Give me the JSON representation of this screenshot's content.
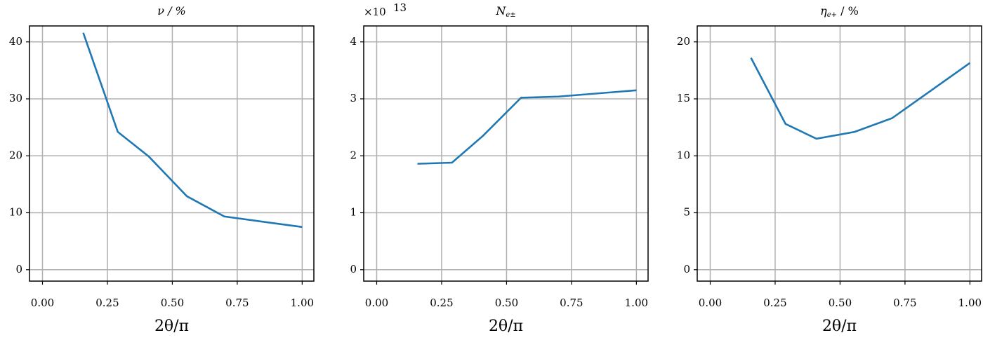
{
  "chart_data": [
    {
      "type": "line",
      "title": "ν / %",
      "xlabel": "2θ/π",
      "x": [
        0.157,
        0.29,
        0.409,
        0.556,
        0.7,
        1.0
      ],
      "series": [
        {
          "color": "#1f77b4",
          "values": [
            41.6,
            24.2,
            19.9,
            12.9,
            9.35,
            7.5
          ]
        }
      ],
      "xlim": [
        -0.05,
        1.045
      ],
      "ylim": [
        -2,
        42.8
      ],
      "xticks": [
        {
          "value": 0,
          "label": "0.00"
        },
        {
          "value": 0.25,
          "label": "0.25"
        },
        {
          "value": 0.5,
          "label": "0.50"
        },
        {
          "value": 0.75,
          "label": "0.75"
        },
        {
          "value": 1,
          "label": "1.00"
        }
      ],
      "yticks": [
        0,
        10,
        20,
        30,
        40
      ],
      "grid": true
    },
    {
      "type": "line",
      "title_main": "N",
      "title_sub": "e±",
      "xlabel": "2θ/π",
      "offset_base": "×10",
      "offset_exponent": "13",
      "x": [
        0.157,
        0.29,
        0.409,
        0.556,
        0.7,
        1.0
      ],
      "series": [
        {
          "color": "#1f77b4",
          "values": [
            1.86,
            1.88,
            2.35,
            3.02,
            3.04,
            3.15
          ]
        }
      ],
      "xlim": [
        -0.05,
        1.045
      ],
      "ylim": [
        -0.2,
        4.28
      ],
      "xticks": [
        {
          "value": 0,
          "label": "0.00"
        },
        {
          "value": 0.25,
          "label": "0.25"
        },
        {
          "value": 0.5,
          "label": "0.50"
        },
        {
          "value": 0.75,
          "label": "0.75"
        },
        {
          "value": 1,
          "label": "1.00"
        }
      ],
      "yticks": [
        0,
        1,
        2,
        3,
        4
      ],
      "grid": true
    },
    {
      "type": "line",
      "title_main": "η",
      "title_sub": "e+",
      "title_rest": " / %",
      "xlabel": "2θ/π",
      "x": [
        0.157,
        0.29,
        0.409,
        0.556,
        0.7,
        1.0
      ],
      "series": [
        {
          "color": "#1f77b4",
          "values": [
            18.6,
            12.8,
            11.5,
            12.1,
            13.3,
            18.15
          ]
        }
      ],
      "xlim": [
        -0.05,
        1.045
      ],
      "ylim": [
        -1,
        21.4
      ],
      "xticks": [
        {
          "value": 0,
          "label": "0.00"
        },
        {
          "value": 0.25,
          "label": "0.25"
        },
        {
          "value": 0.5,
          "label": "0.50"
        },
        {
          "value": 0.75,
          "label": "0.75"
        },
        {
          "value": 1,
          "label": "1.00"
        }
      ],
      "yticks": [
        0,
        5,
        10,
        15,
        20
      ],
      "grid": true
    }
  ]
}
